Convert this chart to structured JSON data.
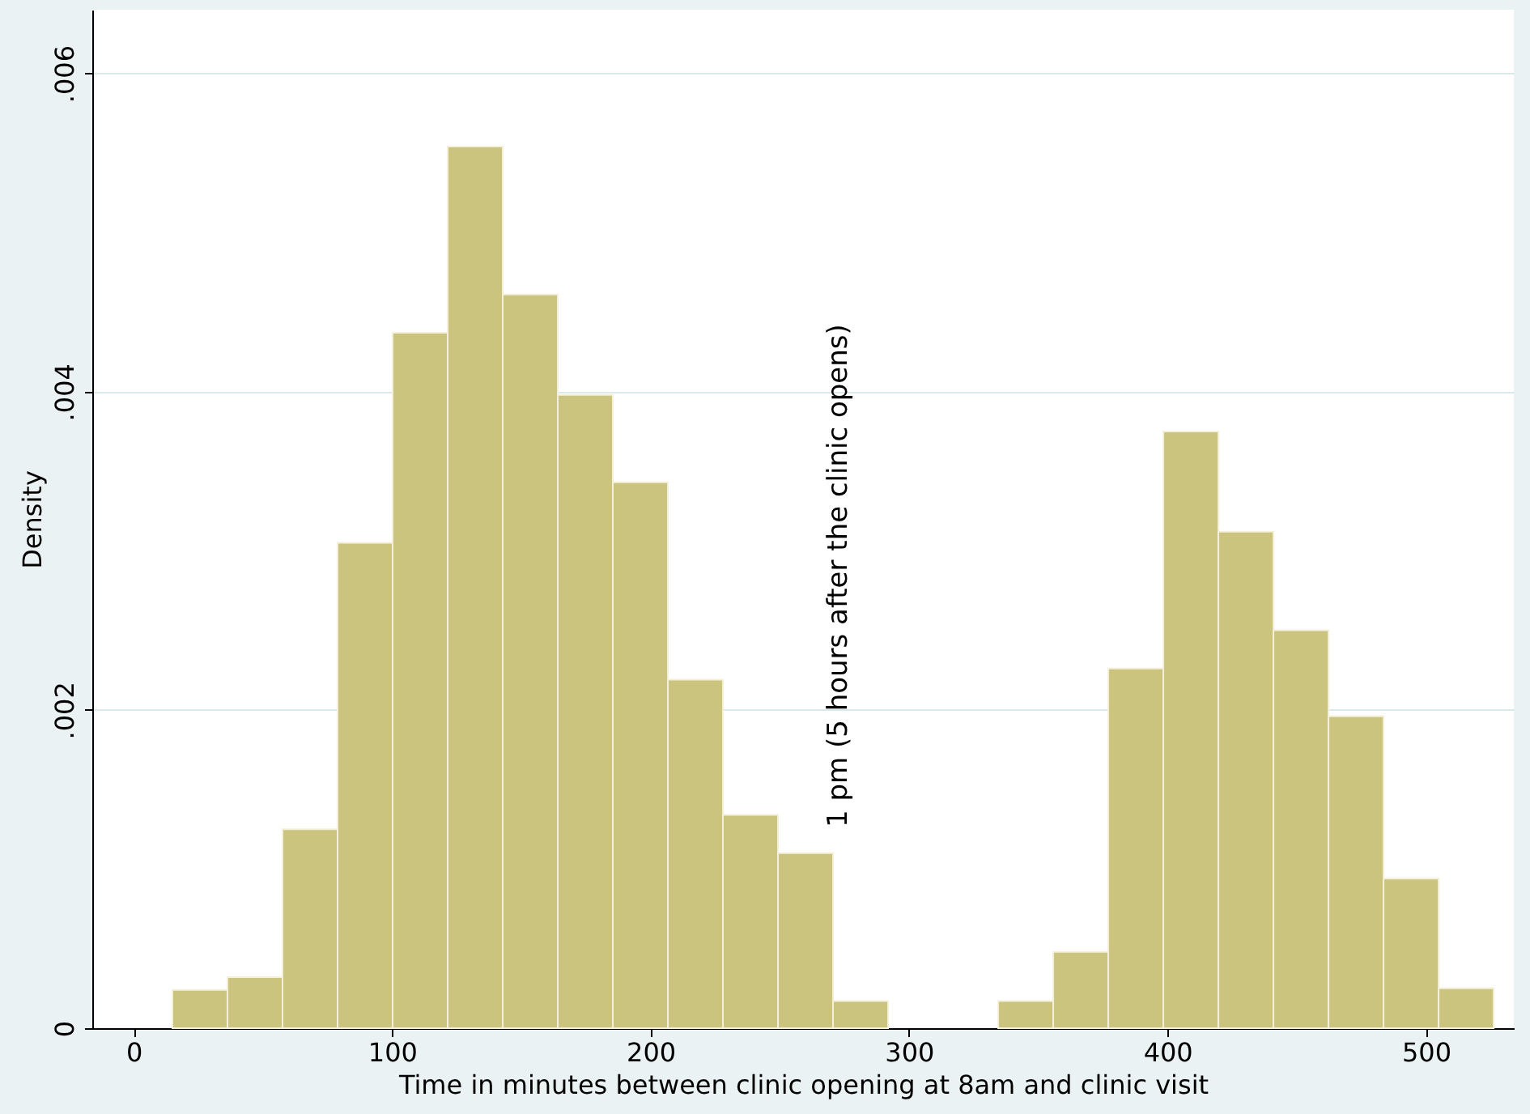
{
  "chart_data": {
    "type": "histogram",
    "xlabel": "Time in minutes between clinic opening at 8am and clinic visit",
    "ylabel": "Density",
    "bins": [
      15,
      36.3,
      57.6,
      78.9,
      100.2,
      121.5,
      142.8,
      164.1,
      185.4,
      206.7,
      228,
      249.3,
      270.6,
      291.9,
      313.2,
      334.5,
      355.8,
      377.1,
      398.4,
      419.7,
      441,
      462.3,
      483.6,
      504.9,
      526.2
    ],
    "values": [
      0.00024,
      0.00032,
      0.00125,
      0.00305,
      0.00437,
      0.00554,
      0.00461,
      0.00398,
      0.00343,
      0.00219,
      0.00134,
      0.0011,
      0.00017,
      null,
      null,
      0.00017,
      0.00048,
      0.00226,
      0.00375,
      0.00312,
      0.0025,
      0.00196,
      0.00094,
      0.00025
    ],
    "color": "#cbc47f",
    "xlim": [
      -16,
      534
    ],
    "xticks": [
      0,
      100,
      200,
      300,
      400,
      500
    ],
    "ylim": [
      0,
      0.0064
    ],
    "yticks": [
      {
        "value": 0,
        "label": "0"
      },
      {
        "value": 0.002,
        "label": ".002"
      },
      {
        "value": 0.004,
        "label": ".004"
      },
      {
        "value": 0.006,
        "label": ".006"
      }
    ],
    "grid": "y",
    "annotations": [
      "1 pm (5 hours after the clinic opens)"
    ]
  }
}
